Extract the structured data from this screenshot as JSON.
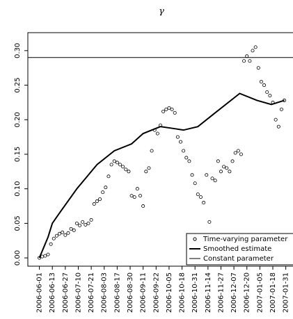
{
  "chart_data": {
    "type": "scatter",
    "title": "γ",
    "xlim": [
      -8,
      176
    ],
    "ylim": [
      -0.012,
      0.326
    ],
    "xticks": [
      {
        "value": 0,
        "label": "2006-06-01"
      },
      {
        "value": 9,
        "label": "2006-06-13"
      },
      {
        "value": 18,
        "label": "2006-06-27"
      },
      {
        "value": 27,
        "label": "2006-07-10"
      },
      {
        "value": 36,
        "label": "2006-07-21"
      },
      {
        "value": 45,
        "label": "2006-08-03"
      },
      {
        "value": 54,
        "label": "2006-08-17"
      },
      {
        "value": 63,
        "label": "2006-08-30"
      },
      {
        "value": 72,
        "label": "2006-09-11"
      },
      {
        "value": 81,
        "label": "2006-09-22"
      },
      {
        "value": 90,
        "label": "2006-10-05"
      },
      {
        "value": 99,
        "label": "2006-10-18"
      },
      {
        "value": 108,
        "label": "2006-10-31"
      },
      {
        "value": 117,
        "label": "2006-11-14"
      },
      {
        "value": 126,
        "label": "2006-11-27"
      },
      {
        "value": 135,
        "label": "2006-12-07"
      },
      {
        "value": 144,
        "label": "2006-12-20"
      },
      {
        "value": 153,
        "label": "2007-01-05"
      },
      {
        "value": 162,
        "label": "2007-01-18"
      },
      {
        "value": 171,
        "label": "2007-01-31"
      }
    ],
    "yticks": [
      {
        "value": 0,
        "label": "0.00"
      },
      {
        "value": 0.05,
        "label": "0.05"
      },
      {
        "value": 0.1,
        "label": "0.10"
      },
      {
        "value": 0.15,
        "label": "0.15"
      },
      {
        "value": 0.2,
        "label": "0.20"
      },
      {
        "value": 0.25,
        "label": "0.25"
      },
      {
        "value": 0.3,
        "label": "0.30"
      }
    ],
    "series": [
      {
        "name": "Time-varying parameter",
        "kind": "points",
        "color": "#000000",
        "x": [
          0,
          2,
          4,
          6,
          8,
          10,
          12,
          14,
          16,
          18,
          20,
          22,
          24,
          26,
          28,
          30,
          32,
          34,
          36,
          38,
          40,
          42,
          44,
          46,
          48,
          50,
          52,
          54,
          56,
          58,
          60,
          62,
          64,
          66,
          68,
          70,
          72,
          74,
          76,
          78,
          80,
          82,
          84,
          86,
          88,
          90,
          92,
          94,
          96,
          98,
          100,
          102,
          104,
          106,
          108,
          110,
          112,
          114,
          116,
          118,
          120,
          122,
          124,
          126,
          128,
          130,
          132,
          134,
          136,
          138,
          140,
          142,
          144,
          146,
          148,
          150,
          152,
          154,
          156,
          158,
          160,
          162,
          164,
          166,
          168,
          170
        ],
        "values": [
          0.0,
          0.002,
          0.003,
          0.005,
          0.02,
          0.028,
          0.032,
          0.035,
          0.037,
          0.033,
          0.036,
          0.042,
          0.04,
          0.05,
          0.047,
          0.052,
          0.048,
          0.05,
          0.055,
          0.078,
          0.082,
          0.085,
          0.095,
          0.102,
          0.118,
          0.135,
          0.14,
          0.138,
          0.135,
          0.132,
          0.128,
          0.125,
          0.09,
          0.088,
          0.1,
          0.09,
          0.075,
          0.125,
          0.13,
          0.155,
          0.185,
          0.18,
          0.192,
          0.212,
          0.215,
          0.217,
          0.215,
          0.21,
          0.175,
          0.168,
          0.155,
          0.145,
          0.14,
          0.12,
          0.108,
          0.092,
          0.088,
          0.08,
          0.12,
          0.052,
          0.115,
          0.112,
          0.14,
          0.125,
          0.132,
          0.13,
          0.125,
          0.14,
          0.152,
          0.155,
          0.15,
          0.285,
          0.292,
          0.285,
          0.3,
          0.305,
          0.275,
          0.255,
          0.25,
          0.24,
          0.235,
          0.225,
          0.2,
          0.19,
          0.215,
          0.228
        ]
      },
      {
        "name": "Smoothed estimate",
        "kind": "line",
        "color": "#000000",
        "x": [
          0,
          6,
          9,
          14,
          26,
          40,
          52,
          64,
          72,
          84,
          94,
          100,
          110,
          122,
          139,
          151,
          161,
          170
        ],
        "values": [
          0.0,
          0.03,
          0.05,
          0.065,
          0.1,
          0.135,
          0.155,
          0.165,
          0.18,
          0.19,
          0.187,
          0.185,
          0.19,
          0.21,
          0.238,
          0.228,
          0.222,
          0.228
        ]
      },
      {
        "name": "Constant parameter",
        "kind": "hline",
        "color": "#000000",
        "value": 0.29
      }
    ]
  }
}
